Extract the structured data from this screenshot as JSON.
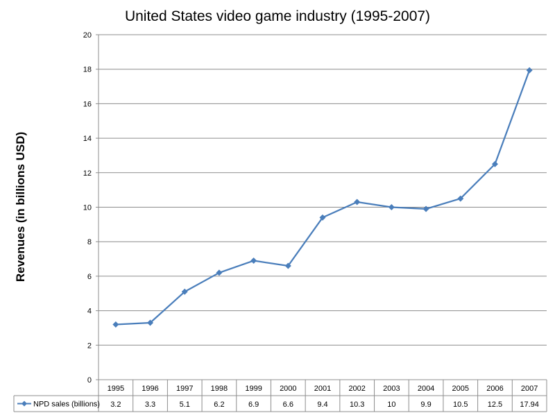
{
  "chart_data": {
    "type": "line",
    "title": "United States video game industry (1995-2007)",
    "xlabel": "",
    "ylabel": "Revenues (in billions USD)",
    "ylim": [
      0,
      20
    ],
    "ytick_step": 2,
    "yticks": [
      "0",
      "2",
      "4",
      "6",
      "8",
      "10",
      "12",
      "14",
      "16",
      "18",
      "20"
    ],
    "grid": true,
    "categories": [
      "1995",
      "1996",
      "1997",
      "1998",
      "1999",
      "2000",
      "2001",
      "2002",
      "2003",
      "2004",
      "2005",
      "2006",
      "2007"
    ],
    "series": [
      {
        "name": "NPD sales (billions)",
        "values": [
          3.2,
          3.3,
          5.1,
          6.2,
          6.9,
          6.6,
          9.4,
          10.3,
          10,
          9.9,
          10.5,
          12.5,
          17.94
        ],
        "labels": [
          "3.2",
          "3.3",
          "5.1",
          "6.2",
          "6.9",
          "6.6",
          "9.4",
          "10.3",
          "10",
          "9.9",
          "10.5",
          "12.5",
          "17.94"
        ],
        "color": "#4a7ebb"
      }
    ],
    "data_table": true
  }
}
